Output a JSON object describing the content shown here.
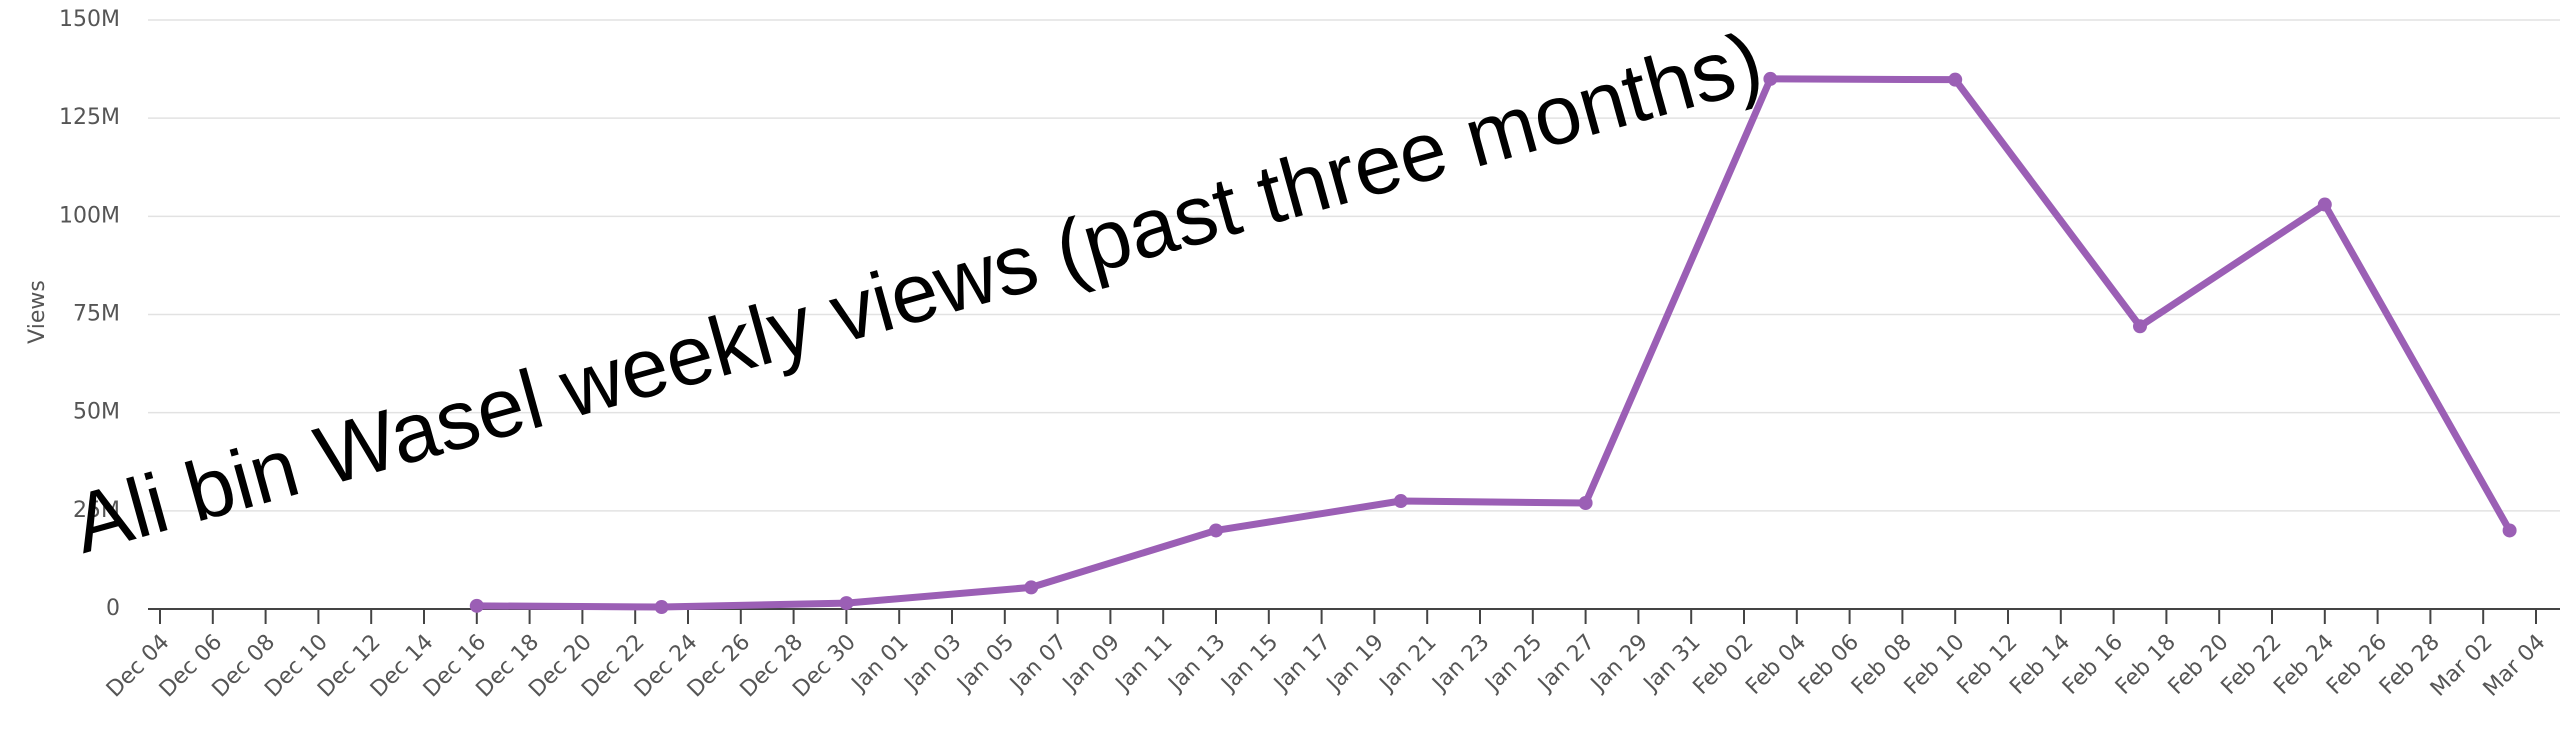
{
  "chart_data": {
    "type": "line",
    "title": "Ali bin Wasel weekly views (past three months)",
    "y_label": "Views",
    "categories": [
      "Dec 04",
      "Dec 06",
      "Dec 08",
      "Dec 10",
      "Dec 12",
      "Dec 14",
      "Dec 16",
      "Dec 18",
      "Dec 20",
      "Dec 22",
      "Dec 24",
      "Dec 26",
      "Dec 28",
      "Dec 30",
      "Jan 01",
      "Jan 03",
      "Jan 05",
      "Jan 07",
      "Jan 09",
      "Jan 11",
      "Jan 13",
      "Jan 15",
      "Jan 17",
      "Jan 19",
      "Jan 21",
      "Jan 23",
      "Jan 25",
      "Jan 27",
      "Jan 29",
      "Jan 31",
      "Feb 02",
      "Feb 04",
      "Feb 06",
      "Feb 08",
      "Feb 10",
      "Feb 12",
      "Feb 14",
      "Feb 16",
      "Feb 18",
      "Feb 20",
      "Feb 22",
      "Feb 24",
      "Feb 26",
      "Feb 28",
      "Mar 02",
      "Mar 04"
    ],
    "series": [
      {
        "color": "#9b5fb5",
        "x": [
          "Dec 16",
          "Dec 23",
          "Dec 30",
          "Jan 06",
          "Jan 13",
          "Jan 20",
          "Jan 27",
          "Feb 03",
          "Feb 10",
          "Feb 17",
          "Feb 24",
          "Mar 03"
        ],
        "values": [
          800000,
          500000,
          1500000,
          5500000,
          20000000,
          27500000,
          27000000,
          135000000,
          134800000,
          72000000,
          103000000,
          20000000
        ]
      }
    ],
    "ylim": [
      0,
      150000000
    ],
    "yticks": [
      0,
      {
        "value": 25000000,
        "label": "25M"
      },
      {
        "value": 50000000,
        "label": "50M"
      },
      {
        "value": 75000000,
        "label": "75M"
      },
      {
        "value": 100000000,
        "label": "100M"
      },
      {
        "value": 125000000,
        "label": "125M"
      },
      {
        "value": 150000000,
        "label": "150M"
      }
    ],
    "grid": true
  }
}
